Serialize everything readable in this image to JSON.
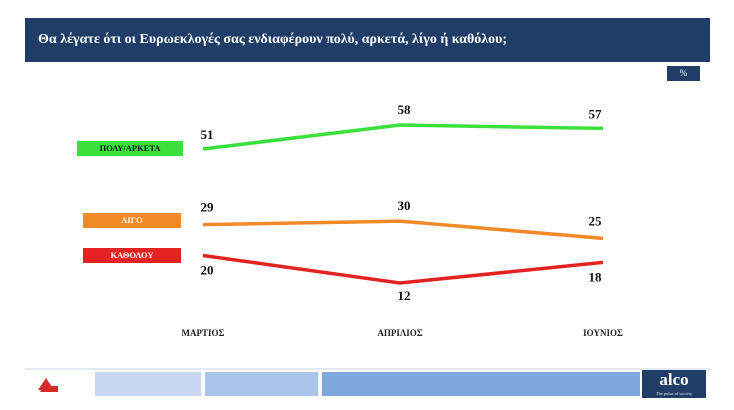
{
  "chart_data": {
    "type": "line",
    "title": "Θα λέγατε ότι οι Ευρωεκλογές σας ενδιαφέρουν πολύ, αρκετά, λίγο ή καθόλου;",
    "unit": "%",
    "categories": [
      "ΜΑΡΤΙΟΣ",
      "ΑΠΡΙΛΙΟΣ",
      "ΙΟΥΝΙΟΣ"
    ],
    "series": [
      {
        "name": "ΠΟΛΥ/ΑΡΚΕΤΑ",
        "color": "#3be03b",
        "values": [
          51,
          58,
          57
        ]
      },
      {
        "name": "ΛΙΓΟ",
        "color": "#f28a2a",
        "values": [
          29,
          30,
          25
        ]
      },
      {
        "name": "ΚΑΘΟΛΟΥ",
        "color": "#e52222",
        "values": [
          20,
          12,
          18
        ]
      }
    ]
  },
  "footer": {
    "brand": "alco",
    "tagline": "The pulse of society"
  }
}
